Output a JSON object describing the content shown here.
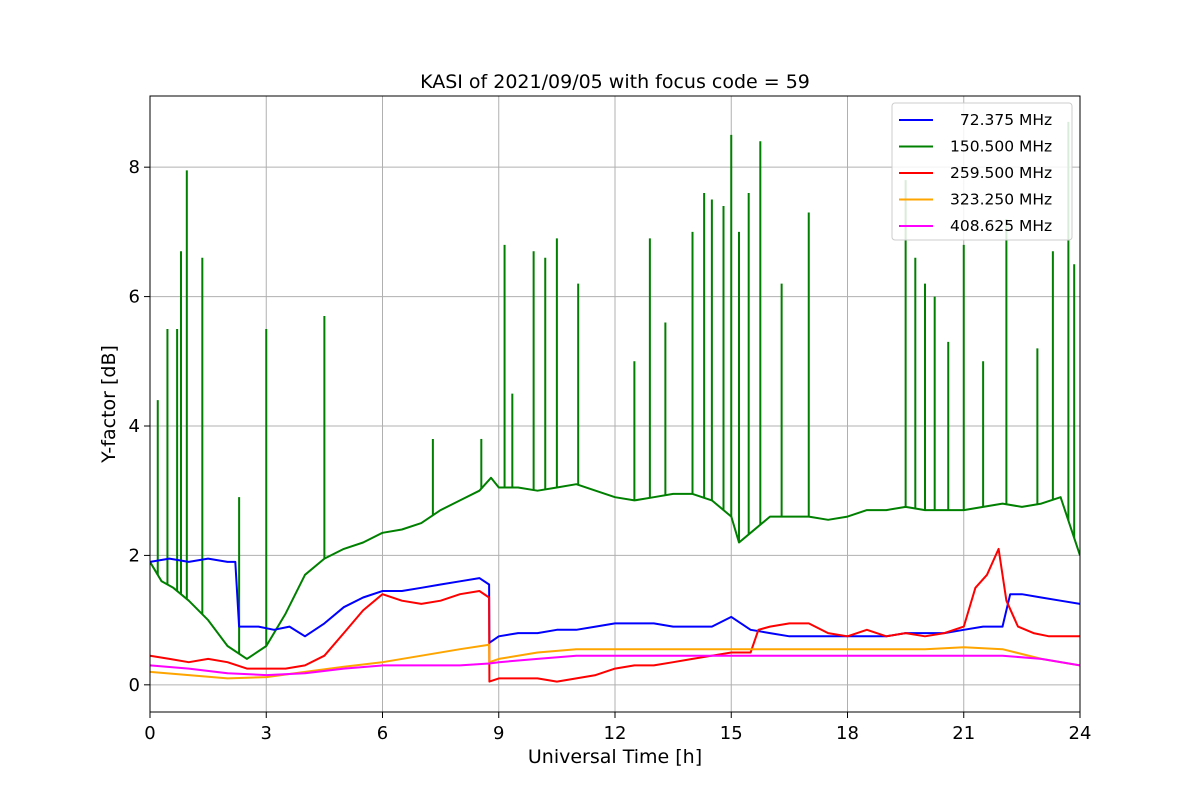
{
  "chart_data": {
    "type": "line",
    "title": "KASI of 2021/09/05 with focus code = 59",
    "xlabel": "Universal Time [h]",
    "ylabel": "Y-factor [dB]",
    "xlim": [
      0,
      24
    ],
    "ylim": [
      -0.42,
      9.1
    ],
    "xticks": [
      0,
      3,
      6,
      9,
      12,
      15,
      18,
      21,
      24
    ],
    "xtick_labels": [
      "0",
      "3",
      "6",
      "9",
      "12",
      "15",
      "18",
      "21",
      "24"
    ],
    "yticks": [
      0,
      2,
      4,
      6,
      8
    ],
    "ytick_labels": [
      "0",
      "2",
      "4",
      "6",
      "8"
    ],
    "grid": true,
    "legend_position": "top-right",
    "series": [
      {
        "name": "  72.375 MHz",
        "color": "#0000ff",
        "x": [
          0,
          0.5,
          1,
          1.5,
          2,
          2.2,
          2.3,
          2.8,
          3.2,
          3.6,
          4,
          4.5,
          5,
          5.5,
          6,
          6.5,
          7,
          7.5,
          8,
          8.5,
          8.75,
          8.76,
          9,
          9.5,
          10,
          10.5,
          11,
          11.5,
          12,
          12.5,
          13,
          13.5,
          14,
          14.5,
          15,
          15.5,
          16,
          16.5,
          17,
          17.5,
          18,
          18.5,
          19,
          19.5,
          20,
          20.5,
          21,
          21.5,
          22,
          22.2,
          22.5,
          23,
          23.5,
          24
        ],
        "y": [
          1.9,
          1.95,
          1.9,
          1.95,
          1.9,
          1.9,
          0.9,
          0.9,
          0.85,
          0.9,
          0.75,
          0.95,
          1.2,
          1.35,
          1.45,
          1.45,
          1.5,
          1.55,
          1.6,
          1.65,
          1.55,
          0.65,
          0.75,
          0.8,
          0.8,
          0.85,
          0.85,
          0.9,
          0.95,
          0.95,
          0.95,
          0.9,
          0.9,
          0.9,
          1.05,
          0.85,
          0.8,
          0.75,
          0.75,
          0.75,
          0.75,
          0.75,
          0.75,
          0.8,
          0.8,
          0.8,
          0.85,
          0.9,
          0.9,
          1.4,
          1.4,
          1.35,
          1.3,
          1.25
        ]
      },
      {
        "name": "150.500 MHz",
        "color": "#008000",
        "x": [
          0,
          0.3,
          0.6,
          1,
          1.5,
          2,
          2.5,
          3,
          3.5,
          4,
          4.5,
          5,
          5.5,
          6,
          6.5,
          7,
          7.5,
          8,
          8.5,
          8.8,
          9,
          9.5,
          10,
          10.5,
          11,
          11.5,
          12,
          12.5,
          13,
          13.5,
          14,
          14.5,
          15,
          15.2,
          15.5,
          16,
          16.5,
          17,
          17.5,
          18,
          18.5,
          19,
          19.5,
          20,
          20.5,
          21,
          21.5,
          22,
          22.5,
          23,
          23.5,
          24
        ],
        "y": [
          1.9,
          1.6,
          1.5,
          1.3,
          1.0,
          0.6,
          0.4,
          0.6,
          1.1,
          1.7,
          1.95,
          2.1,
          2.2,
          2.35,
          2.4,
          2.5,
          2.7,
          2.85,
          3.0,
          3.2,
          3.05,
          3.05,
          3.0,
          3.05,
          3.1,
          3.0,
          2.9,
          2.85,
          2.9,
          2.95,
          2.95,
          2.85,
          2.6,
          2.2,
          2.35,
          2.6,
          2.6,
          2.6,
          2.55,
          2.6,
          2.7,
          2.7,
          2.75,
          2.7,
          2.7,
          2.7,
          2.75,
          2.8,
          2.75,
          2.8,
          2.9,
          2.0
        ],
        "spikes": [
          [
            0.2,
            4.4
          ],
          [
            0.45,
            5.5
          ],
          [
            0.7,
            5.5
          ],
          [
            0.8,
            6.7
          ],
          [
            0.95,
            7.95
          ],
          [
            1.35,
            6.6
          ],
          [
            2.3,
            2.9
          ],
          [
            3.0,
            5.5
          ],
          [
            4.5,
            5.7
          ],
          [
            7.3,
            3.8
          ],
          [
            8.55,
            3.8
          ],
          [
            9.15,
            6.8
          ],
          [
            9.35,
            4.5
          ],
          [
            9.9,
            6.7
          ],
          [
            10.2,
            6.6
          ],
          [
            10.5,
            6.9
          ],
          [
            11.05,
            6.2
          ],
          [
            12.5,
            5.0
          ],
          [
            12.9,
            6.9
          ],
          [
            13.3,
            5.6
          ],
          [
            14.0,
            7.0
          ],
          [
            14.3,
            7.6
          ],
          [
            14.5,
            7.5
          ],
          [
            14.8,
            7.4
          ],
          [
            15.0,
            8.5
          ],
          [
            15.2,
            7.0
          ],
          [
            15.45,
            7.6
          ],
          [
            15.75,
            8.4
          ],
          [
            16.3,
            6.2
          ],
          [
            17.0,
            7.3
          ],
          [
            19.5,
            7.8
          ],
          [
            19.75,
            6.6
          ],
          [
            20.0,
            6.2
          ],
          [
            20.25,
            6.0
          ],
          [
            20.6,
            5.3
          ],
          [
            21.0,
            6.8
          ],
          [
            21.5,
            5.0
          ],
          [
            22.1,
            7.2
          ],
          [
            22.9,
            5.2
          ],
          [
            23.3,
            6.7
          ],
          [
            23.7,
            8.7
          ],
          [
            23.85,
            6.5
          ]
        ]
      },
      {
        "name": "259.500 MHz",
        "color": "#ff0000",
        "x": [
          0,
          0.5,
          1,
          1.5,
          2,
          2.5,
          3,
          3.5,
          4,
          4.5,
          5,
          5.5,
          6,
          6.5,
          7,
          7.5,
          8,
          8.5,
          8.75,
          8.76,
          9,
          9.5,
          10,
          10.5,
          11,
          11.5,
          12,
          12.5,
          13,
          13.5,
          14,
          14.5,
          15,
          15.5,
          15.7,
          16,
          16.5,
          17,
          17.5,
          18,
          18.5,
          19,
          19.5,
          20,
          20.5,
          21,
          21.3,
          21.6,
          21.9,
          22.1,
          22.4,
          22.8,
          23.2,
          23.6,
          24
        ],
        "y": [
          0.45,
          0.4,
          0.35,
          0.4,
          0.35,
          0.25,
          0.25,
          0.25,
          0.3,
          0.45,
          0.8,
          1.15,
          1.4,
          1.3,
          1.25,
          1.3,
          1.4,
          1.45,
          1.35,
          0.05,
          0.1,
          0.1,
          0.1,
          0.05,
          0.1,
          0.15,
          0.25,
          0.3,
          0.3,
          0.35,
          0.4,
          0.45,
          0.5,
          0.5,
          0.85,
          0.9,
          0.95,
          0.95,
          0.8,
          0.75,
          0.85,
          0.75,
          0.8,
          0.75,
          0.8,
          0.9,
          1.5,
          1.7,
          2.1,
          1.3,
          0.9,
          0.8,
          0.75,
          0.75,
          0.75
        ]
      },
      {
        "name": "323.250 MHz",
        "color": "#ffa500",
        "x": [
          0,
          1,
          2,
          3,
          4,
          5,
          6,
          7,
          8,
          8.75,
          8.76,
          9,
          10,
          11,
          12,
          13,
          14,
          15,
          16,
          17,
          18,
          19,
          20,
          21,
          22,
          23,
          24
        ],
        "y": [
          0.2,
          0.15,
          0.1,
          0.12,
          0.2,
          0.28,
          0.35,
          0.45,
          0.55,
          0.62,
          0.35,
          0.4,
          0.5,
          0.55,
          0.55,
          0.55,
          0.55,
          0.55,
          0.55,
          0.55,
          0.55,
          0.55,
          0.55,
          0.58,
          0.55,
          0.4,
          0.3
        ]
      },
      {
        "name": "408.625 MHz",
        "color": "#ff00ff",
        "x": [
          0,
          1,
          2,
          3,
          4,
          5,
          6,
          7,
          8,
          8.75,
          9,
          10,
          11,
          12,
          13,
          14,
          15,
          16,
          17,
          18,
          19,
          20,
          21,
          22,
          23,
          24
        ],
        "y": [
          0.3,
          0.25,
          0.18,
          0.15,
          0.18,
          0.25,
          0.3,
          0.3,
          0.3,
          0.33,
          0.35,
          0.4,
          0.45,
          0.45,
          0.45,
          0.45,
          0.45,
          0.45,
          0.45,
          0.45,
          0.45,
          0.45,
          0.45,
          0.45,
          0.4,
          0.3
        ]
      }
    ]
  }
}
